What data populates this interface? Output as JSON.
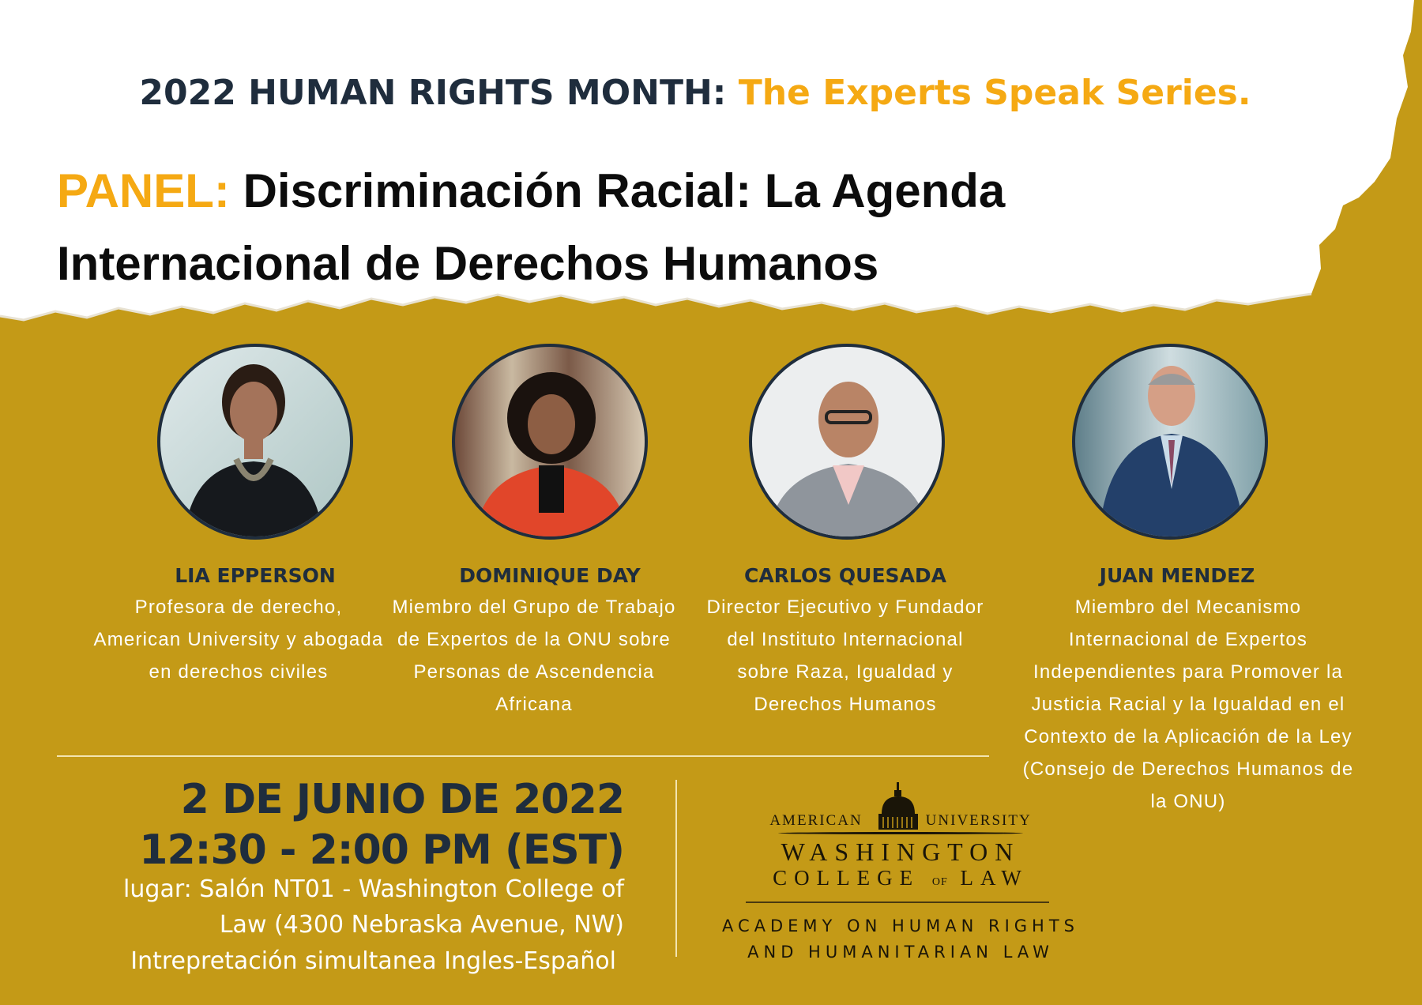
{
  "header": {
    "series_prefix": "2022 HUMAN RIGHTS MONTH:",
    "series_name": "The Experts Speak Series.",
    "panel_label": "PANEL:",
    "panel_title": "Discriminación Racial: La Agenda Internacional de Derechos Humanos"
  },
  "speakers": [
    {
      "name": "LIA EPPERSON",
      "description": "Profesora de derecho, American University y abogada en derechos civiles"
    },
    {
      "name": "DOMINIQUE DAY",
      "description": "Miembro del Grupo de Trabajo de Expertos de la ONU sobre Personas de Ascendencia Africana"
    },
    {
      "name": "CARLOS QUESADA",
      "description": "Director Ejecutivo y Fundador del Instituto Internacional sobre Raza, Igualdad y Derechos Humanos"
    },
    {
      "name": "JUAN MENDEZ",
      "description": "Miembro del Mecanismo Internacional de Expertos Independientes para Promover la Justicia Racial y la Igualdad en el Contexto de la Aplicación de la Ley (Consejo de Derechos Humanos de la ONU)"
    }
  ],
  "event": {
    "date": "2 DE JUNIO DE 2022",
    "time": "12:30 - 2:00 PM (EST)",
    "venue_line1": "lugar: Salón NT01 - Washington College of",
    "venue_line2": "Law (4300 Nebraska Avenue, NW)",
    "interpretation": "Intrepretación simultanea Ingles-Español"
  },
  "logo": {
    "american": "AMERICAN",
    "university": "UNIVERSITY",
    "washington": "WASHINGTON",
    "college": "COLLEGE",
    "of": "OF",
    "law": "LAW",
    "academy_line1": "ACADEMY ON HUMAN RIGHTS",
    "academy_line2": "AND HUMANITARIAN LAW"
  },
  "colors": {
    "background": "#c49a17",
    "accent": "#f5a913",
    "navy": "#1f2d3d"
  }
}
